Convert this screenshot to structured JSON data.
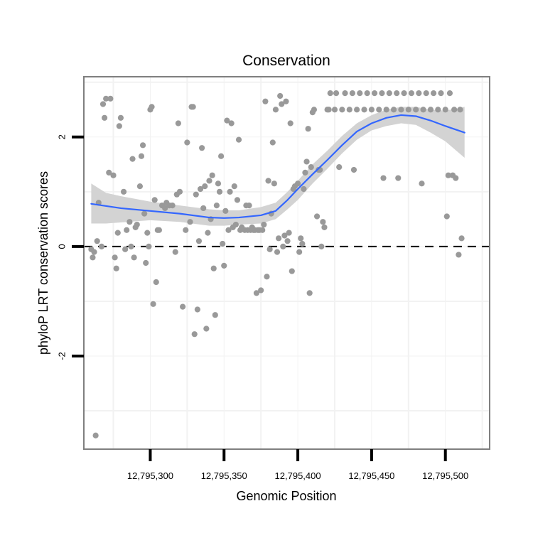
{
  "chart_data": {
    "type": "scatter",
    "title": "Conservation",
    "xlabel": "Genomic Position",
    "ylabel": "phyloP LRT conservation scores",
    "xlim": [
      12795255,
      12795530
    ],
    "ylim": [
      -3.7,
      3.1
    ],
    "x_ticks": [
      12795300,
      12795350,
      12795400,
      12795450,
      12795500
    ],
    "x_tick_labels": [
      "12,795,300",
      "12,795,350",
      "12,795,400",
      "12,795,450",
      "12,795,500"
    ],
    "y_ticks": [
      -2,
      0,
      2
    ],
    "y_tick_labels": [
      "-2",
      "0",
      "2"
    ],
    "grid": true,
    "reference_line": {
      "y": 0,
      "style": "dashed"
    },
    "colors": {
      "points": "#999999",
      "smooth_line": "#3366ff",
      "confidence_band": "#d3d3d3",
      "panel_border": "#7f7f7f",
      "grid": "#f2f2f2"
    },
    "series": [
      {
        "type": "scatter",
        "points": [
          [
            12795260,
            -0.05
          ],
          [
            12795261,
            -0.2
          ],
          [
            12795262,
            -0.1
          ],
          [
            12795263,
            -3.45
          ],
          [
            12795264,
            0.1
          ],
          [
            12795265,
            0.8
          ],
          [
            12795267,
            0.0
          ],
          [
            12795268,
            2.6
          ],
          [
            12795269,
            2.35
          ],
          [
            12795270,
            2.7
          ],
          [
            12795272,
            1.35
          ],
          [
            12795273,
            2.7
          ],
          [
            12795275,
            1.3
          ],
          [
            12795276,
            -0.2
          ],
          [
            12795277,
            -0.4
          ],
          [
            12795278,
            0.25
          ],
          [
            12795279,
            2.2
          ],
          [
            12795280,
            2.35
          ],
          [
            12795282,
            1.0
          ],
          [
            12795283,
            -0.05
          ],
          [
            12795284,
            0.3
          ],
          [
            12795286,
            0.45
          ],
          [
            12795287,
            0.0
          ],
          [
            12795288,
            1.6
          ],
          [
            12795289,
            -0.2
          ],
          [
            12795290,
            0.35
          ],
          [
            12795291,
            0.4
          ],
          [
            12795293,
            1.1
          ],
          [
            12795294,
            1.65
          ],
          [
            12795295,
            1.85
          ],
          [
            12795296,
            0.6
          ],
          [
            12795297,
            -0.3
          ],
          [
            12795298,
            0.25
          ],
          [
            12795299,
            0.0
          ],
          [
            12795300,
            2.5
          ],
          [
            12795301,
            2.55
          ],
          [
            12795302,
            -1.05
          ],
          [
            12795303,
            0.85
          ],
          [
            12795304,
            -0.65
          ],
          [
            12795305,
            0.3
          ],
          [
            12795306,
            0.3
          ],
          [
            12795308,
            0.75
          ],
          [
            12795310,
            0.7
          ],
          [
            12795311,
            0.8
          ],
          [
            12795313,
            0.75
          ],
          [
            12795315,
            0.75
          ],
          [
            12795317,
            -0.1
          ],
          [
            12795318,
            0.95
          ],
          [
            12795319,
            2.25
          ],
          [
            12795320,
            1.0
          ],
          [
            12795322,
            -1.1
          ],
          [
            12795324,
            0.3
          ],
          [
            12795325,
            1.9
          ],
          [
            12795327,
            0.45
          ],
          [
            12795328,
            2.55
          ],
          [
            12795329,
            2.55
          ],
          [
            12795330,
            -1.6
          ],
          [
            12795331,
            0.95
          ],
          [
            12795332,
            -1.15
          ],
          [
            12795333,
            0.1
          ],
          [
            12795334,
            1.05
          ],
          [
            12795335,
            1.8
          ],
          [
            12795336,
            0.7
          ],
          [
            12795337,
            1.1
          ],
          [
            12795338,
            -1.5
          ],
          [
            12795339,
            0.25
          ],
          [
            12795340,
            1.2
          ],
          [
            12795341,
            0.5
          ],
          [
            12795342,
            1.3
          ],
          [
            12795343,
            -0.4
          ],
          [
            12795344,
            -1.25
          ],
          [
            12795345,
            0.75
          ],
          [
            12795346,
            1.15
          ],
          [
            12795347,
            1.0
          ],
          [
            12795348,
            1.65
          ],
          [
            12795349,
            0.05
          ],
          [
            12795350,
            -0.35
          ],
          [
            12795351,
            0.65
          ],
          [
            12795352,
            2.3
          ],
          [
            12795353,
            0.3
          ],
          [
            12795354,
            1.0
          ],
          [
            12795355,
            2.25
          ],
          [
            12795356,
            0.35
          ],
          [
            12795357,
            1.1
          ],
          [
            12795358,
            0.4
          ],
          [
            12795359,
            0.85
          ],
          [
            12795360,
            1.95
          ],
          [
            12795361,
            0.3
          ],
          [
            12795362,
            0.35
          ],
          [
            12795364,
            0.3
          ],
          [
            12795365,
            0.75
          ],
          [
            12795366,
            0.3
          ],
          [
            12795367,
            0.75
          ],
          [
            12795368,
            0.3
          ],
          [
            12795369,
            0.35
          ],
          [
            12795370,
            0.3
          ],
          [
            12795371,
            0.3
          ],
          [
            12795372,
            -0.85
          ],
          [
            12795373,
            0.3
          ],
          [
            12795374,
            0.3
          ],
          [
            12795375,
            -0.8
          ],
          [
            12795376,
            0.3
          ],
          [
            12795377,
            0.4
          ],
          [
            12795378,
            2.65
          ],
          [
            12795379,
            -0.55
          ],
          [
            12795380,
            1.2
          ],
          [
            12795381,
            -0.05
          ],
          [
            12795382,
            0.6
          ],
          [
            12795383,
            1.9
          ],
          [
            12795384,
            1.15
          ],
          [
            12795385,
            2.5
          ],
          [
            12795386,
            -0.1
          ],
          [
            12795387,
            0.15
          ],
          [
            12795388,
            2.75
          ],
          [
            12795389,
            2.6
          ],
          [
            12795390,
            0.0
          ],
          [
            12795391,
            0.2
          ],
          [
            12795392,
            2.65
          ],
          [
            12795393,
            0.1
          ],
          [
            12795394,
            0.25
          ],
          [
            12795395,
            2.25
          ],
          [
            12795396,
            -0.45
          ],
          [
            12795397,
            1.05
          ],
          [
            12795398,
            1.1
          ],
          [
            12795400,
            1.15
          ],
          [
            12795401,
            -0.1
          ],
          [
            12795402,
            0.15
          ],
          [
            12795403,
            0.05
          ],
          [
            12795404,
            1.05
          ],
          [
            12795405,
            1.35
          ],
          [
            12795406,
            1.55
          ],
          [
            12795407,
            2.15
          ],
          [
            12795408,
            -0.85
          ],
          [
            12795409,
            1.45
          ],
          [
            12795410,
            2.45
          ],
          [
            12795411,
            2.5
          ],
          [
            12795413,
            0.55
          ],
          [
            12795414,
            1.4
          ],
          [
            12795415,
            1.4
          ],
          [
            12795416,
            0.0
          ],
          [
            12795417,
            0.45
          ],
          [
            12795418,
            0.35
          ],
          [
            12795420,
            2.5
          ],
          [
            12795421,
            2.5
          ],
          [
            12795422,
            2.8
          ],
          [
            12795425,
            2.5
          ],
          [
            12795426,
            2.8
          ],
          [
            12795428,
            1.45
          ],
          [
            12795430,
            2.5
          ],
          [
            12795432,
            2.8
          ],
          [
            12795435,
            2.5
          ],
          [
            12795437,
            2.8
          ],
          [
            12795438,
            1.4
          ],
          [
            12795440,
            2.5
          ],
          [
            12795442,
            2.8
          ],
          [
            12795445,
            2.5
          ],
          [
            12795447,
            2.8
          ],
          [
            12795450,
            2.5
          ],
          [
            12795452,
            2.8
          ],
          [
            12795455,
            2.5
          ],
          [
            12795457,
            2.8
          ],
          [
            12795458,
            1.25
          ],
          [
            12795460,
            2.5
          ],
          [
            12795462,
            2.8
          ],
          [
            12795465,
            2.5
          ],
          [
            12795467,
            2.8
          ],
          [
            12795468,
            1.25
          ],
          [
            12795470,
            2.5
          ],
          [
            12795472,
            2.8
          ],
          [
            12795475,
            2.5
          ],
          [
            12795477,
            2.8
          ],
          [
            12795480,
            2.5
          ],
          [
            12795482,
            2.8
          ],
          [
            12795484,
            1.15
          ],
          [
            12795485,
            2.5
          ],
          [
            12795487,
            2.8
          ],
          [
            12795490,
            2.5
          ],
          [
            12795492,
            2.8
          ],
          [
            12795495,
            2.5
          ],
          [
            12795497,
            2.8
          ],
          [
            12795500,
            2.5
          ],
          [
            12795501,
            0.55
          ],
          [
            12795502,
            1.3
          ],
          [
            12795503,
            2.8
          ],
          [
            12795505,
            1.3
          ],
          [
            12795506,
            2.5
          ],
          [
            12795507,
            1.25
          ],
          [
            12795509,
            -0.15
          ],
          [
            12795510,
            2.5
          ],
          [
            12795511,
            0.15
          ]
        ]
      },
      {
        "type": "smooth",
        "points": [
          [
            12795260,
            0.78
          ],
          [
            12795280,
            0.7
          ],
          [
            12795300,
            0.65
          ],
          [
            12795320,
            0.6
          ],
          [
            12795340,
            0.53
          ],
          [
            12795350,
            0.52
          ],
          [
            12795360,
            0.53
          ],
          [
            12795375,
            0.57
          ],
          [
            12795385,
            0.65
          ],
          [
            12795393,
            0.85
          ],
          [
            12795400,
            1.05
          ],
          [
            12795410,
            1.32
          ],
          [
            12795420,
            1.58
          ],
          [
            12795430,
            1.85
          ],
          [
            12795440,
            2.1
          ],
          [
            12795450,
            2.25
          ],
          [
            12795460,
            2.35
          ],
          [
            12795470,
            2.4
          ],
          [
            12795480,
            2.38
          ],
          [
            12795490,
            2.3
          ],
          [
            12795500,
            2.2
          ],
          [
            12795513,
            2.08
          ]
        ]
      },
      {
        "type": "band",
        "points": [
          [
            12795260,
            0.42,
            1.15
          ],
          [
            12795270,
            0.42,
            0.98
          ],
          [
            12795280,
            0.44,
            0.92
          ],
          [
            12795300,
            0.48,
            0.82
          ],
          [
            12795320,
            0.45,
            0.75
          ],
          [
            12795340,
            0.38,
            0.68
          ],
          [
            12795350,
            0.38,
            0.66
          ],
          [
            12795360,
            0.4,
            0.66
          ],
          [
            12795375,
            0.42,
            0.72
          ],
          [
            12795385,
            0.5,
            0.8
          ],
          [
            12795393,
            0.68,
            1.0
          ],
          [
            12795400,
            0.85,
            1.2
          ],
          [
            12795410,
            1.15,
            1.5
          ],
          [
            12795420,
            1.42,
            1.75
          ],
          [
            12795430,
            1.7,
            2.02
          ],
          [
            12795440,
            1.95,
            2.25
          ],
          [
            12795450,
            2.12,
            2.4
          ],
          [
            12795460,
            2.2,
            2.5
          ],
          [
            12795470,
            2.25,
            2.55
          ],
          [
            12795480,
            2.22,
            2.55
          ],
          [
            12795490,
            2.08,
            2.5
          ],
          [
            12795500,
            1.92,
            2.48
          ],
          [
            12795513,
            1.62,
            2.55
          ]
        ]
      }
    ]
  }
}
